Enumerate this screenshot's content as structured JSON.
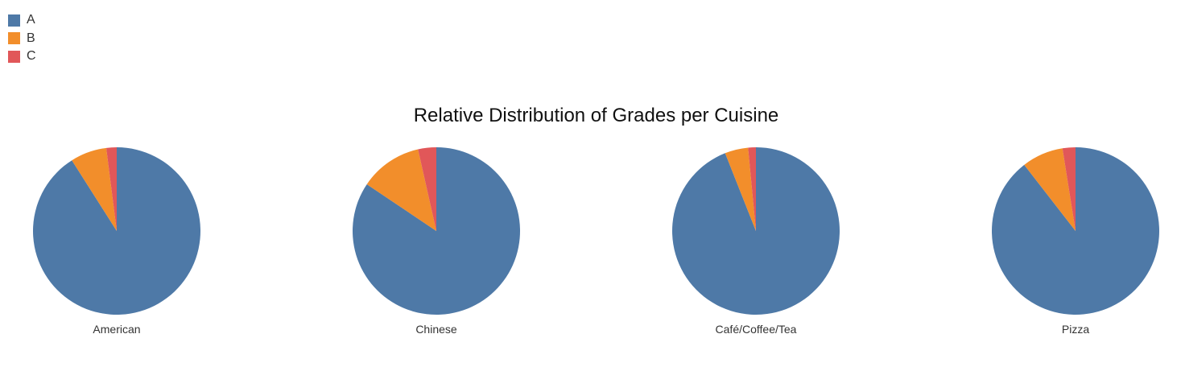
{
  "chart_data": {
    "type": "pie",
    "title": "Relative Distribution of Grades per Cuisine",
    "legend": {
      "placement": "top-left",
      "entries": [
        {
          "name": "A",
          "color": "#4e79a7"
        },
        {
          "name": "B",
          "color": "#f28e2b"
        },
        {
          "name": "C",
          "color": "#e15759"
        }
      ]
    },
    "pies": [
      {
        "category": "American",
        "values": [
          0.91,
          0.07,
          0.02
        ]
      },
      {
        "category": "Chinese",
        "values": [
          0.84,
          0.12,
          0.035
        ]
      },
      {
        "category": "Café/Coffee/Tea",
        "values": [
          0.94,
          0.045,
          0.015
        ]
      },
      {
        "category": "Pizza",
        "values": [
          0.895,
          0.08,
          0.025
        ]
      }
    ]
  }
}
